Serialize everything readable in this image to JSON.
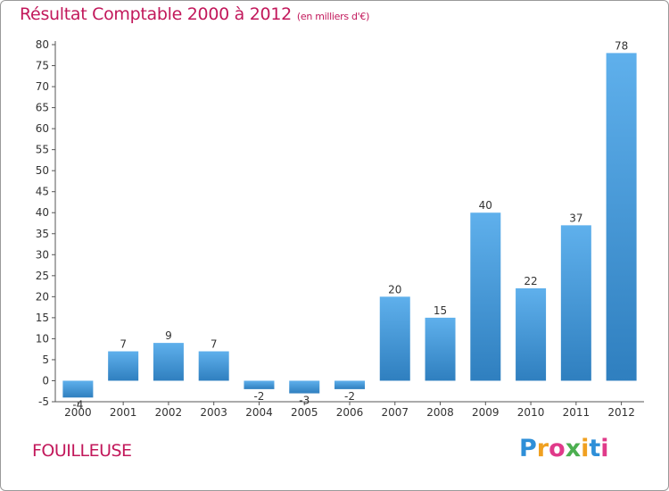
{
  "header": {
    "title": "Résultat Comptable 2000 à 2012",
    "unit": "(en milliers d'€)"
  },
  "footer": {
    "city": "FOUILLEUSE"
  },
  "brand": {
    "letters": [
      "P",
      "r",
      "o",
      "x",
      "i",
      "t",
      "i"
    ],
    "colors": [
      "#2e8fd8",
      "#f0a020",
      "#e03a8a",
      "#4caf50",
      "#f0a020",
      "#2e8fd8",
      "#e03a8a"
    ]
  },
  "colors": {
    "bar_top": "#5fb0ec",
    "bar_bottom": "#2f7fbf",
    "axis": "#555555",
    "grid": "#cccccc"
  },
  "chart_data": {
    "type": "bar",
    "title": "Résultat Comptable 2000 à 2012",
    "subtitle": "(en milliers d'€)",
    "xlabel": "",
    "ylabel": "",
    "categories": [
      "2000",
      "2001",
      "2002",
      "2003",
      "2004",
      "2005",
      "2006",
      "2007",
      "2008",
      "2009",
      "2010",
      "2011",
      "2012"
    ],
    "values": [
      -4,
      7,
      9,
      7,
      -2,
      -3,
      -2,
      20,
      15,
      40,
      22,
      37,
      78
    ],
    "ylim": [
      -5,
      80
    ],
    "yticks": [
      -5,
      0,
      5,
      10,
      15,
      20,
      25,
      30,
      35,
      40,
      45,
      50,
      55,
      60,
      65,
      70,
      75,
      80
    ],
    "grid": false,
    "legend": "none"
  }
}
